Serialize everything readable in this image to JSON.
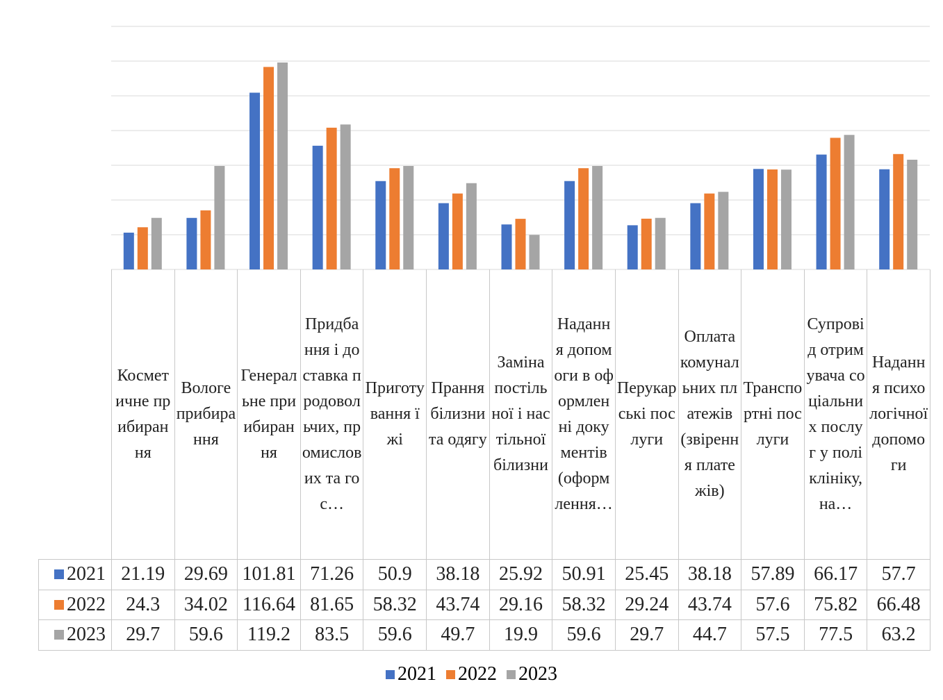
{
  "chart_data": {
    "type": "bar",
    "categories": [
      "Косметичне прибирання",
      "Вологе прибирання",
      "Генеральне приибирання",
      "Придбання і доставка продовольчих, промислових та гос…",
      "Приготування їжі",
      "Прання білизни та одягу",
      "Заміна постільної і настільної білизни",
      "Надання допомоги в оформленні документів (оформлення…",
      "Перукарські послуги",
      "Оплата комунальних платежів (звірення платежів)",
      "Транспортні послуги",
      "Супровід отримувача соціальних послуг у поліклініку, на…",
      "Надання психологічної допомоги"
    ],
    "series": [
      {
        "name": "2021",
        "color": "#4472c4",
        "values": [
          21.19,
          29.69,
          101.81,
          71.26,
          50.9,
          38.18,
          25.92,
          50.91,
          25.45,
          38.18,
          57.89,
          66.17,
          57.7
        ]
      },
      {
        "name": "2022",
        "color": "#ed7d31",
        "values": [
          24.3,
          34.02,
          116.64,
          81.65,
          58.32,
          43.74,
          29.16,
          58.32,
          29.24,
          43.74,
          57.6,
          75.82,
          66.48
        ]
      },
      {
        "name": "2023",
        "color": "#a5a5a5",
        "values": [
          29.7,
          59.6,
          119.2,
          83.5,
          59.6,
          49.7,
          19.9,
          59.6,
          29.7,
          44.7,
          57.5,
          77.5,
          63.2
        ]
      }
    ],
    "ylim": [
      0,
      140
    ],
    "yticks": [
      0,
      20,
      40,
      60,
      80,
      100,
      120,
      140
    ],
    "grid": true,
    "legend": "bottom"
  }
}
